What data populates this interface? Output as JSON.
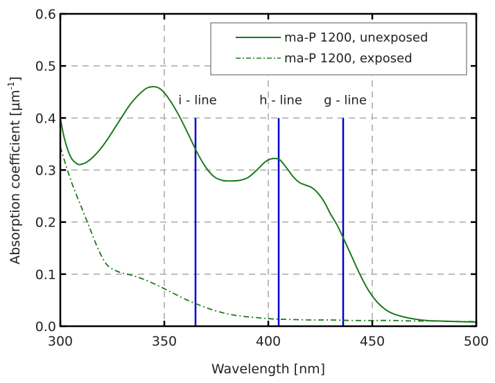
{
  "chart_data": {
    "type": "line",
    "title": "",
    "xlabel": "Wavelength [nm]",
    "ylabel": "Absorption coefficient [µm",
    "ylabel_superscript": "-1",
    "ylabel_suffix": "]",
    "xlim": [
      300,
      500
    ],
    "ylim": [
      0.0,
      0.6
    ],
    "xticks": [
      300,
      350,
      400,
      450,
      500
    ],
    "xtick_labels": [
      "300",
      "350",
      "400",
      "450",
      "500"
    ],
    "yticks": [
      0.0,
      0.1,
      0.2,
      0.3,
      0.4,
      0.5,
      0.6
    ],
    "ytick_labels": [
      "0.0",
      "0.1",
      "0.2",
      "0.3",
      "0.4",
      "0.5",
      "0.6"
    ],
    "grid": true,
    "legend_position": "top-right",
    "colors": {
      "series": "#1a7a1a",
      "marker_lines": "#0000cc",
      "grid": "#bbbbbb",
      "axis": "#000000"
    },
    "series": [
      {
        "name": "ma-P 1200, unexposed",
        "style": "solid",
        "x": [
          300,
          302,
          305,
          308,
          310,
          313,
          317,
          322,
          328,
          334,
          340,
          344,
          348,
          352,
          357,
          362,
          366,
          370,
          374,
          378,
          382,
          386,
          390,
          394,
          398,
          401,
          404,
          406,
          409,
          412,
          415,
          418,
          421,
          424,
          427,
          430,
          433,
          436,
          440,
          444,
          448,
          452,
          456,
          460,
          465,
          470,
          476,
          482,
          490,
          500
        ],
        "y": [
          0.4,
          0.36,
          0.325,
          0.312,
          0.311,
          0.316,
          0.33,
          0.355,
          0.392,
          0.428,
          0.453,
          0.46,
          0.456,
          0.438,
          0.405,
          0.365,
          0.332,
          0.305,
          0.287,
          0.28,
          0.279,
          0.28,
          0.285,
          0.298,
          0.314,
          0.321,
          0.322,
          0.318,
          0.303,
          0.287,
          0.276,
          0.271,
          0.266,
          0.255,
          0.238,
          0.215,
          0.195,
          0.17,
          0.135,
          0.1,
          0.07,
          0.048,
          0.033,
          0.024,
          0.018,
          0.014,
          0.011,
          0.01,
          0.009,
          0.008
        ]
      },
      {
        "name": "ma-P 1200, exposed",
        "style": "dashdot",
        "x": [
          300,
          303,
          306,
          310,
          314,
          318,
          322,
          326,
          330,
          336,
          342,
          348,
          354,
          360,
          366,
          372,
          378,
          384,
          390,
          396,
          402,
          410,
          420,
          430,
          440,
          450,
          460,
          470,
          480,
          490,
          500
        ],
        "y": [
          0.345,
          0.305,
          0.27,
          0.23,
          0.19,
          0.15,
          0.12,
          0.108,
          0.102,
          0.096,
          0.087,
          0.076,
          0.064,
          0.052,
          0.042,
          0.033,
          0.026,
          0.021,
          0.018,
          0.016,
          0.014,
          0.013,
          0.012,
          0.012,
          0.011,
          0.011,
          0.011,
          0.01,
          0.01,
          0.009,
          0.009
        ]
      }
    ],
    "vertical_lines": [
      {
        "label": "i - line",
        "x": 365,
        "y_top": 0.4
      },
      {
        "label": "h - line",
        "x": 405,
        "y_top": 0.4
      },
      {
        "label": "g - line",
        "x": 436,
        "y_top": 0.4
      }
    ]
  }
}
